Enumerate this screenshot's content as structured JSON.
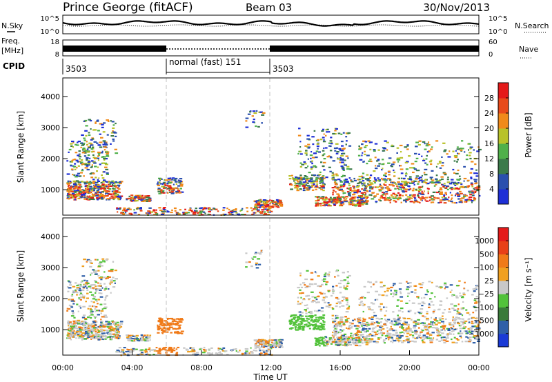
{
  "header": {
    "station": "Prince George (fitACF)",
    "beam": "Beam 03",
    "date": "30/Nov/2013"
  },
  "noise_panel": {
    "left_label": "N.Sky",
    "right_label": "N.Search",
    "left_ticks": [
      "10^5",
      "10^0"
    ],
    "right_ticks": [
      "10^5",
      "10^0"
    ]
  },
  "freq_panel": {
    "left_label_1": "Freq.",
    "left_label_2": "[MHz]",
    "right_label": "Nave",
    "left_ticks": [
      "18",
      "8"
    ],
    "right_ticks": [
      "60",
      "0"
    ]
  },
  "cpid_panel": {
    "label": "CPID",
    "segments": [
      {
        "text": "3503",
        "start_hour": 0
      },
      {
        "text": "normal (fast) 151",
        "start_hour": 6
      },
      {
        "text": "3503",
        "start_hour": 12
      }
    ]
  },
  "chart_data": [
    {
      "type": "heatmap",
      "name": "power",
      "ylabel": "Slant Range [km]",
      "xlim": [
        0,
        24
      ],
      "ylim": [
        180,
        4600
      ],
      "yticks": [
        1000,
        2000,
        3000,
        4000
      ],
      "colorbar": {
        "label": "Power [dB]",
        "ticks": [
          "4",
          "8",
          "12",
          "16",
          "20",
          "24",
          "28"
        ],
        "colors": [
          "#1e2fd6",
          "#2a4fae",
          "#3b7a4a",
          "#4fb04a",
          "#b8c22a",
          "#f08a1a",
          "#e84a1a",
          "#e41a1a"
        ]
      }
    },
    {
      "type": "heatmap",
      "name": "velocity",
      "ylabel": "Slant Range [km]",
      "xlabel": "Time UT",
      "xlim": [
        0,
        24
      ],
      "ylim": [
        180,
        4600
      ],
      "yticks": [
        1000,
        2000,
        3000,
        4000
      ],
      "xticks": [
        "00:00",
        "04:00",
        "08:00",
        "12:00",
        "16:00",
        "20:00",
        "00:00"
      ],
      "colorbar": {
        "label": "Velocity [m s⁻¹]",
        "ticks": [
          "1000",
          "500",
          "100",
          "25",
          "−25",
          "−100",
          "−500",
          "−1000"
        ],
        "colors": [
          "#1a3ad6",
          "#2f5fa8",
          "#3a7a3a",
          "#52c23a",
          "#c8c8c8",
          "#f0a020",
          "#f07a18",
          "#e84018",
          "#e41a1a"
        ]
      }
    }
  ]
}
